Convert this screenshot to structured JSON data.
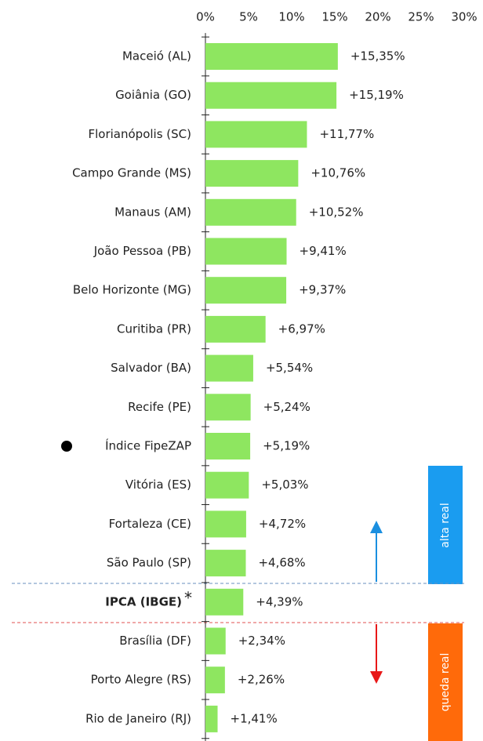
{
  "chart_data": {
    "type": "bar",
    "orientation": "horizontal",
    "categories": [
      "Maceió (AL)",
      "Goiânia (GO)",
      "Florianópolis (SC)",
      "Campo Grande (MS)",
      "Manaus (AM)",
      "João Pessoa (PB)",
      "Belo Horizonte (MG)",
      "Curitiba (PR)",
      "Salvador (BA)",
      "Recife (PE)",
      "Índice FipeZAP",
      "Vitória (ES)",
      "Fortaleza (CE)",
      "São Paulo (SP)",
      "IPCA (IBGE)",
      "Brasília (DF)",
      "Porto Alegre (RS)",
      "Rio de Janeiro (RJ)"
    ],
    "values": [
      15.35,
      15.19,
      11.77,
      10.76,
      10.52,
      9.41,
      9.37,
      6.97,
      5.54,
      5.24,
      5.19,
      5.03,
      4.72,
      4.68,
      4.39,
      2.34,
      2.26,
      1.41
    ],
    "value_labels": [
      "+15,35%",
      "+15,19%",
      "+11,77%",
      "+10,76%",
      "+10,52%",
      "+9,41%",
      "+9,37%",
      "+6,97%",
      "+5,54%",
      "+5,24%",
      "+5,19%",
      "+5,03%",
      "+4,72%",
      "+4,68%",
      "+4,39%",
      "+2,34%",
      "+2,26%",
      "+1,41%"
    ],
    "color": "#8ee660",
    "xlim": [
      0,
      30
    ],
    "xticks": [
      {
        "value": 0,
        "label": "0%"
      },
      {
        "value": 5,
        "label": "5%"
      },
      {
        "value": 10,
        "label": "10%"
      },
      {
        "value": 15,
        "label": "15%"
      },
      {
        "value": 20,
        "label": "20%"
      },
      {
        "value": 25,
        "label": "25%"
      },
      {
        "value": 30,
        "label": "30%"
      }
    ],
    "annotations": {
      "up": "alta real",
      "down": "queda real",
      "asterisk": "*"
    }
  }
}
